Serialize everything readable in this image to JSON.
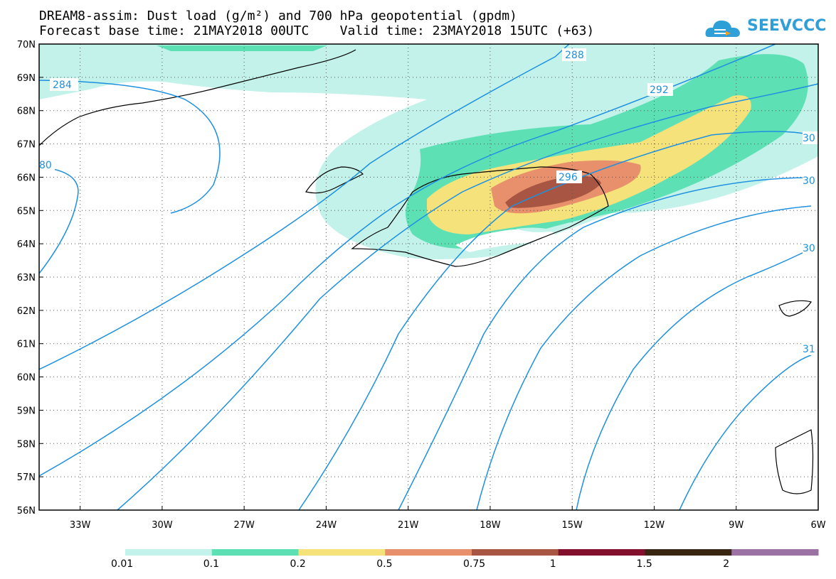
{
  "header": {
    "line1": "DREAM8-assim: Dust load (g/m²) and 700 hPa geopotential (gpdm)",
    "line2": "Forecast base time: 21MAY2018 00UTC    Valid time: 23MAY2018 15UTC (+63)"
  },
  "logo": {
    "text": "SEEVCCC",
    "icon": "cloud-icon",
    "color": "#2f9fd8"
  },
  "axes": {
    "lat_labels": [
      "70N",
      "69N",
      "68N",
      "67N",
      "66N",
      "65N",
      "64N",
      "63N",
      "62N",
      "61N",
      "60N",
      "59N",
      "58N",
      "57N",
      "56N"
    ],
    "lon_labels": [
      "33W",
      "30W",
      "27W",
      "24W",
      "21W",
      "18W",
      "15W",
      "12W",
      "9W",
      "6W"
    ],
    "lat_range": [
      56,
      70
    ],
    "lon_range": [
      -34.5,
      -6
    ],
    "grid": "dotted"
  },
  "contours": {
    "color": "#1e90e0",
    "labels": [
      "284",
      "288",
      "292",
      "296",
      "80",
      "30",
      "30",
      "30",
      "31"
    ]
  },
  "colorbar": {
    "colors": [
      "#c3f2ea",
      "#5ee0b5",
      "#f5e27a",
      "#e8906b",
      "#a85543",
      "#820f2b",
      "#3a2512",
      "#9c72a4"
    ],
    "labels": [
      "0.01",
      "0.1",
      "0.2",
      "0.5",
      "0.75",
      "1",
      "1.5",
      "2"
    ]
  }
}
